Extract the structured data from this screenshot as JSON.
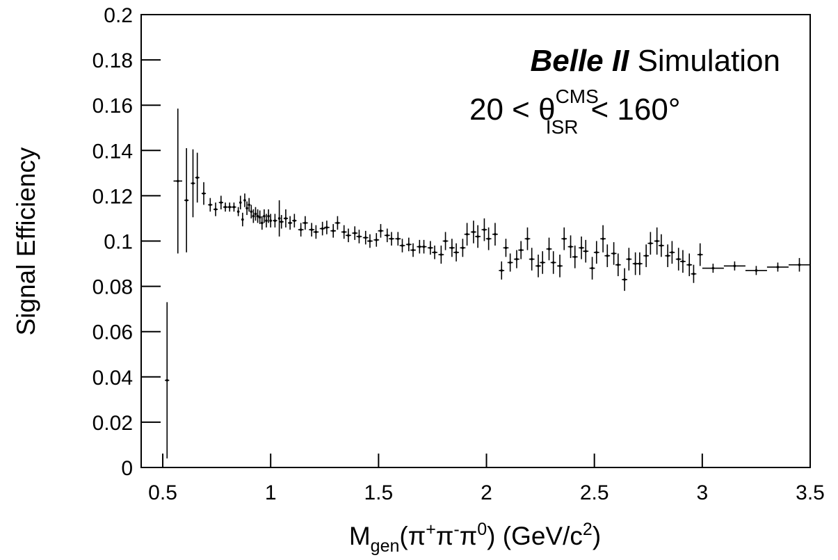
{
  "chart_data": {
    "type": "errorbar",
    "annotations": [
      {
        "bold": "Belle II",
        "text": "Simulation"
      },
      {
        "before": "20 < θ",
        "sup": "CMS",
        "sub": "ISR",
        "after": "< 160°"
      }
    ],
    "x_label": {
      "parts": [
        "M",
        "gen",
        "(π",
        "+",
        "π",
        "-",
        "π",
        "0",
        ") (GeV/c",
        "2",
        ")"
      ]
    },
    "y_label": "Signal Efficiency",
    "xlim": [
      0.4,
      3.5
    ],
    "ylim": [
      0,
      0.2
    ],
    "xticks": [
      0.5,
      1,
      1.5,
      2,
      2.5,
      3,
      3.5
    ],
    "yticks": [
      0,
      0.02,
      0.04,
      0.06,
      0.08,
      0.1,
      0.12,
      0.14,
      0.16,
      0.18,
      0.2
    ],
    "color": "#000000",
    "x": [
      0.52,
      0.57,
      0.61,
      0.64,
      0.66,
      0.69,
      0.72,
      0.745,
      0.77,
      0.79,
      0.81,
      0.83,
      0.85,
      0.86,
      0.87,
      0.88,
      0.89,
      0.9,
      0.91,
      0.92,
      0.93,
      0.94,
      0.95,
      0.96,
      0.97,
      0.98,
      0.99,
      1.0,
      1.02,
      1.04,
      1.05,
      1.07,
      1.09,
      1.11,
      1.14,
      1.16,
      1.19,
      1.21,
      1.24,
      1.26,
      1.29,
      1.31,
      1.34,
      1.36,
      1.39,
      1.41,
      1.44,
      1.46,
      1.49,
      1.51,
      1.54,
      1.56,
      1.59,
      1.61,
      1.64,
      1.66,
      1.69,
      1.71,
      1.74,
      1.76,
      1.79,
      1.81,
      1.84,
      1.86,
      1.89,
      1.91,
      1.94,
      1.96,
      1.99,
      2.01,
      2.04,
      2.07,
      2.09,
      2.11,
      2.14,
      2.16,
      2.19,
      2.21,
      2.24,
      2.26,
      2.29,
      2.31,
      2.34,
      2.36,
      2.39,
      2.41,
      2.44,
      2.46,
      2.49,
      2.51,
      2.54,
      2.56,
      2.59,
      2.61,
      2.64,
      2.66,
      2.69,
      2.71,
      2.74,
      2.76,
      2.79,
      2.81,
      2.84,
      2.86,
      2.89,
      2.91,
      2.94,
      2.96,
      2.99,
      3.05,
      3.15,
      3.25,
      3.35,
      3.45
    ],
    "x_errors": [
      0.01,
      0.02,
      0.01,
      0.01,
      0.01,
      0.01,
      0.01,
      0.01,
      0.01,
      0.01,
      0.01,
      0.01,
      0.005,
      0.005,
      0.005,
      0.005,
      0.005,
      0.005,
      0.005,
      0.005,
      0.005,
      0.005,
      0.005,
      0.005,
      0.005,
      0.005,
      0.005,
      0.005,
      0.01,
      0.005,
      0.01,
      0.01,
      0.01,
      0.01,
      0.0125,
      0.0125,
      0.0125,
      0.0125,
      0.0125,
      0.0125,
      0.0125,
      0.0125,
      0.0125,
      0.0125,
      0.0125,
      0.0125,
      0.0125,
      0.0125,
      0.0125,
      0.0125,
      0.0125,
      0.0125,
      0.0125,
      0.0125,
      0.0125,
      0.0125,
      0.0125,
      0.0125,
      0.0125,
      0.0125,
      0.0125,
      0.0125,
      0.0125,
      0.0125,
      0.0125,
      0.0125,
      0.0125,
      0.0125,
      0.0125,
      0.0125,
      0.0125,
      0.0125,
      0.0125,
      0.0125,
      0.0125,
      0.0125,
      0.0125,
      0.0125,
      0.0125,
      0.0125,
      0.0125,
      0.0125,
      0.0125,
      0.0125,
      0.0125,
      0.0125,
      0.0125,
      0.0125,
      0.0125,
      0.0125,
      0.0125,
      0.0125,
      0.0125,
      0.0125,
      0.0125,
      0.0125,
      0.0125,
      0.0125,
      0.0125,
      0.0125,
      0.0125,
      0.0125,
      0.0125,
      0.0125,
      0.0125,
      0.0125,
      0.0125,
      0.0125,
      0.0125,
      0.05,
      0.05,
      0.05,
      0.05,
      0.05
    ],
    "values": [
      0.0385,
      0.1265,
      0.118,
      0.1255,
      0.128,
      0.121,
      0.116,
      0.114,
      0.117,
      0.115,
      0.115,
      0.115,
      0.113,
      0.117,
      0.1095,
      0.118,
      0.1145,
      0.116,
      0.113,
      0.111,
      0.112,
      0.111,
      0.1105,
      0.108,
      0.111,
      0.109,
      0.111,
      0.109,
      0.109,
      0.11,
      0.1085,
      0.11,
      0.108,
      0.109,
      0.105,
      0.108,
      0.105,
      0.104,
      0.1055,
      0.106,
      0.1045,
      0.108,
      0.104,
      0.1025,
      0.1035,
      0.102,
      0.1015,
      0.1,
      0.1005,
      0.1045,
      0.1025,
      0.101,
      0.101,
      0.098,
      0.0985,
      0.096,
      0.0975,
      0.0975,
      0.097,
      0.095,
      0.094,
      0.1,
      0.097,
      0.095,
      0.097,
      0.103,
      0.104,
      0.102,
      0.105,
      0.101,
      0.103,
      0.087,
      0.097,
      0.0905,
      0.092,
      0.096,
      0.101,
      0.092,
      0.089,
      0.0905,
      0.0965,
      0.0905,
      0.089,
      0.101,
      0.0975,
      0.093,
      0.097,
      0.0955,
      0.088,
      0.095,
      0.101,
      0.0935,
      0.0945,
      0.0895,
      0.083,
      0.092,
      0.09,
      0.09,
      0.0935,
      0.099,
      0.1,
      0.098,
      0.0935,
      0.095,
      0.092,
      0.091,
      0.0895,
      0.0855,
      0.094,
      0.088,
      0.089,
      0.087,
      0.0885,
      0.0895
    ],
    "errors": [
      0.0345,
      0.032,
      0.023,
      0.015,
      0.011,
      0.005,
      0.003,
      0.003,
      0.003,
      0.002,
      0.002,
      0.002,
      0.002,
      0.003,
      0.003,
      0.003,
      0.003,
      0.003,
      0.003,
      0.003,
      0.003,
      0.003,
      0.003,
      0.003,
      0.003,
      0.003,
      0.003,
      0.003,
      0.003,
      0.008,
      0.003,
      0.004,
      0.003,
      0.003,
      0.003,
      0.003,
      0.003,
      0.003,
      0.003,
      0.003,
      0.003,
      0.003,
      0.003,
      0.003,
      0.003,
      0.003,
      0.003,
      0.003,
      0.003,
      0.003,
      0.003,
      0.003,
      0.003,
      0.003,
      0.003,
      0.003,
      0.003,
      0.003,
      0.003,
      0.003,
      0.004,
      0.004,
      0.004,
      0.004,
      0.004,
      0.005,
      0.005,
      0.005,
      0.005,
      0.005,
      0.005,
      0.004,
      0.004,
      0.004,
      0.004,
      0.004,
      0.005,
      0.005,
      0.005,
      0.005,
      0.005,
      0.005,
      0.005,
      0.005,
      0.005,
      0.005,
      0.005,
      0.005,
      0.005,
      0.005,
      0.006,
      0.005,
      0.005,
      0.005,
      0.005,
      0.005,
      0.005,
      0.005,
      0.005,
      0.005,
      0.006,
      0.005,
      0.005,
      0.005,
      0.005,
      0.005,
      0.005,
      0.004,
      0.005,
      0.002,
      0.002,
      0.002,
      0.002,
      0.003
    ]
  }
}
